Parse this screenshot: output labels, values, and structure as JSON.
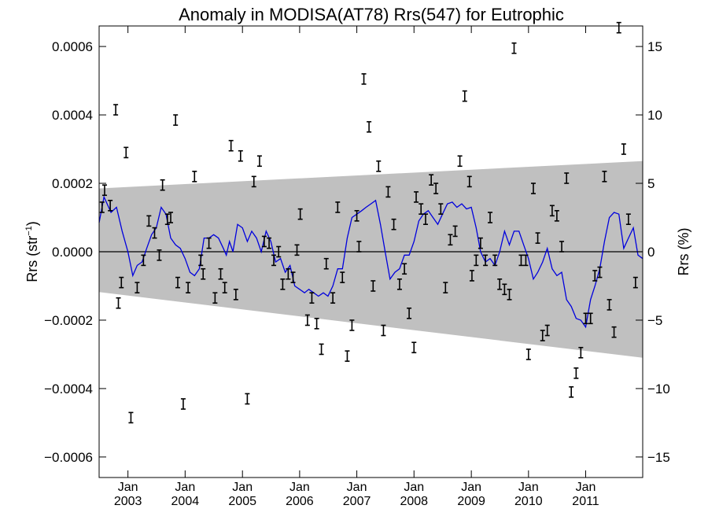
{
  "chart_data": {
    "type": "scatter",
    "title": "Anomaly in MODISA(AT78) Rrs(547) for Eutrophic",
    "ylabel_left_main": "Rrs (str",
    "ylabel_left_sup": "−1",
    "ylabel_left_tail": ")",
    "ylabel_right": "Rrs (%)",
    "x_range": [
      "2002-07-01",
      "2011-12-31"
    ],
    "ylim_left": [
      -0.00066,
      0.00066
    ],
    "ylim_right": [
      -16.5,
      16.5
    ],
    "x_ticks": [
      {
        "date": "2003-01-01",
        "month": "Jan",
        "year": "2003"
      },
      {
        "date": "2004-01-01",
        "month": "Jan",
        "year": "2004"
      },
      {
        "date": "2005-01-01",
        "month": "Jan",
        "year": "2005"
      },
      {
        "date": "2006-01-01",
        "month": "Jan",
        "year": "2006"
      },
      {
        "date": "2007-01-01",
        "month": "Jan",
        "year": "2007"
      },
      {
        "date": "2008-01-01",
        "month": "Jan",
        "year": "2008"
      },
      {
        "date": "2009-01-01",
        "month": "Jan",
        "year": "2009"
      },
      {
        "date": "2010-01-01",
        "month": "Jan",
        "year": "2010"
      },
      {
        "date": "2011-01-01",
        "month": "Jan",
        "year": "2011"
      }
    ],
    "y_ticks_left": [
      {
        "value": 0.0006,
        "label": "0.0006"
      },
      {
        "value": 0.0004,
        "label": "0.0004"
      },
      {
        "value": 0.0002,
        "label": "0.0002"
      },
      {
        "value": 0.0,
        "label": "0.0000"
      },
      {
        "value": -0.0002,
        "label": "−0.0002"
      },
      {
        "value": -0.0004,
        "label": "−0.0004"
      },
      {
        "value": -0.0006,
        "label": "−0.0006"
      }
    ],
    "y_ticks_right": [
      {
        "value": 15,
        "label": "15"
      },
      {
        "value": 10,
        "label": "10"
      },
      {
        "value": 5,
        "label": "5"
      },
      {
        "value": 0,
        "label": "0"
      },
      {
        "value": -5,
        "label": "−5"
      },
      {
        "value": -10,
        "label": "−10"
      },
      {
        "value": -15,
        "label": "−15"
      }
    ],
    "band": {
      "start": {
        "date": "2002-07-01",
        "upper": 0.000185,
        "lower": -0.000118
      },
      "end": {
        "date": "2011-12-31",
        "upper": 0.000265,
        "lower": -0.00031
      },
      "color": "#c0c0c0"
    },
    "zero_line": 0.0,
    "line_color": "#0000dd",
    "errorbar_color": "#000000",
    "errorbar_halfwidth": 1.5e-05,
    "points": [
      {
        "date": "2002-07-20",
        "y": 0.00013
      },
      {
        "date": "2002-08-05",
        "y": 0.00018
      },
      {
        "date": "2002-09-10",
        "y": 0.000135
      },
      {
        "date": "2002-10-15",
        "y": 0.000415
      },
      {
        "date": "2002-11-01",
        "y": -0.00015
      },
      {
        "date": "2002-11-20",
        "y": -9e-05
      },
      {
        "date": "2002-12-20",
        "y": 0.00029
      },
      {
        "date": "2003-01-20",
        "y": -0.000485
      },
      {
        "date": "2003-03-01",
        "y": -0.000105
      },
      {
        "date": "2003-04-10",
        "y": -2.5e-05
      },
      {
        "date": "2003-05-15",
        "y": 9e-05
      },
      {
        "date": "2003-06-20",
        "y": 5.5e-05
      },
      {
        "date": "2003-07-20",
        "y": -1e-05
      },
      {
        "date": "2003-08-10",
        "y": 0.000195
      },
      {
        "date": "2003-09-10",
        "y": 9.5e-05
      },
      {
        "date": "2003-10-01",
        "y": 0.0001
      },
      {
        "date": "2003-11-01",
        "y": 0.000385
      },
      {
        "date": "2003-11-15",
        "y": -9e-05
      },
      {
        "date": "2003-12-20",
        "y": -0.000445
      },
      {
        "date": "2004-01-20",
        "y": -0.000105
      },
      {
        "date": "2004-03-01",
        "y": 0.00022
      },
      {
        "date": "2004-04-10",
        "y": -2.5e-05
      },
      {
        "date": "2004-04-25",
        "y": -6.5e-05
      },
      {
        "date": "2004-06-01",
        "y": 2.5e-05
      },
      {
        "date": "2004-07-10",
        "y": -0.000135
      },
      {
        "date": "2004-08-15",
        "y": -6.5e-05
      },
      {
        "date": "2004-09-10",
        "y": -0.000105
      },
      {
        "date": "2004-10-20",
        "y": 0.00031
      },
      {
        "date": "2004-11-20",
        "y": -0.000125
      },
      {
        "date": "2004-12-20",
        "y": 0.00028
      },
      {
        "date": "2005-02-01",
        "y": -0.00043
      },
      {
        "date": "2005-03-15",
        "y": 0.000205
      },
      {
        "date": "2005-04-20",
        "y": 0.000265
      },
      {
        "date": "2005-05-20",
        "y": 3e-05
      },
      {
        "date": "2005-06-20",
        "y": 2.5e-05
      },
      {
        "date": "2005-07-20",
        "y": -2.5e-05
      },
      {
        "date": "2005-08-20",
        "y": 0.0
      },
      {
        "date": "2005-09-15",
        "y": -9.5e-05
      },
      {
        "date": "2005-10-20",
        "y": -6.5e-05
      },
      {
        "date": "2005-11-20",
        "y": -7.5e-05
      },
      {
        "date": "2005-12-15",
        "y": 5e-06
      },
      {
        "date": "2006-01-05",
        "y": 0.00011
      },
      {
        "date": "2006-02-20",
        "y": -0.0002
      },
      {
        "date": "2006-03-20",
        "y": -0.000135
      },
      {
        "date": "2006-04-20",
        "y": -0.00021
      },
      {
        "date": "2006-05-20",
        "y": -0.000285
      },
      {
        "date": "2006-06-20",
        "y": -3.5e-05
      },
      {
        "date": "2006-08-01",
        "y": -0.000135
      },
      {
        "date": "2006-09-01",
        "y": 0.00013
      },
      {
        "date": "2006-10-01",
        "y": -7.5e-05
      },
      {
        "date": "2006-11-01",
        "y": -0.000305
      },
      {
        "date": "2006-12-01",
        "y": -0.000215
      },
      {
        "date": "2007-01-01",
        "y": 0.000105
      },
      {
        "date": "2007-01-15",
        "y": 1.5e-05
      },
      {
        "date": "2007-02-15",
        "y": 0.000505
      },
      {
        "date": "2007-03-20",
        "y": 0.000365
      },
      {
        "date": "2007-04-15",
        "y": -0.0001
      },
      {
        "date": "2007-05-20",
        "y": 0.00025
      },
      {
        "date": "2007-06-20",
        "y": -0.00023
      },
      {
        "date": "2007-07-20",
        "y": 0.000175
      },
      {
        "date": "2007-08-25",
        "y": 8e-05
      },
      {
        "date": "2007-10-01",
        "y": -9.5e-05
      },
      {
        "date": "2007-11-01",
        "y": -5e-05
      },
      {
        "date": "2007-12-01",
        "y": -0.00018
      },
      {
        "date": "2008-01-01",
        "y": -0.00028
      },
      {
        "date": "2008-01-15",
        "y": 0.00016
      },
      {
        "date": "2008-02-15",
        "y": 0.000125
      },
      {
        "date": "2008-03-15",
        "y": 9.5e-05
      },
      {
        "date": "2008-04-20",
        "y": 0.00021
      },
      {
        "date": "2008-05-20",
        "y": 0.000185
      },
      {
        "date": "2008-06-20",
        "y": 0.000125
      },
      {
        "date": "2008-07-20",
        "y": -0.000105
      },
      {
        "date": "2008-08-20",
        "y": 3.5e-05
      },
      {
        "date": "2008-09-20",
        "y": 6e-05
      },
      {
        "date": "2008-10-20",
        "y": 0.000265
      },
      {
        "date": "2008-11-20",
        "y": 0.000455
      },
      {
        "date": "2008-12-20",
        "y": 0.000205
      },
      {
        "date": "2009-01-05",
        "y": -7e-05
      },
      {
        "date": "2009-02-01",
        "y": -2.5e-05
      },
      {
        "date": "2009-03-01",
        "y": 2.5e-05
      },
      {
        "date": "2009-04-01",
        "y": -2.5e-05
      },
      {
        "date": "2009-05-01",
        "y": 0.0001
      },
      {
        "date": "2009-06-01",
        "y": -2.5e-05
      },
      {
        "date": "2009-07-01",
        "y": -9.5e-05
      },
      {
        "date": "2009-08-01",
        "y": -0.00011
      },
      {
        "date": "2009-09-01",
        "y": -0.000125
      },
      {
        "date": "2009-10-01",
        "y": 0.000595
      },
      {
        "date": "2009-11-15",
        "y": -2.5e-05
      },
      {
        "date": "2009-12-15",
        "y": -2.5e-05
      },
      {
        "date": "2010-01-01",
        "y": -0.0003
      },
      {
        "date": "2010-02-01",
        "y": 0.000185
      },
      {
        "date": "2010-03-01",
        "y": 4e-05
      },
      {
        "date": "2010-04-01",
        "y": -0.000245
      },
      {
        "date": "2010-05-01",
        "y": -0.00023
      },
      {
        "date": "2010-06-01",
        "y": 0.00012
      },
      {
        "date": "2010-07-01",
        "y": 0.000105
      },
      {
        "date": "2010-08-01",
        "y": 1.5e-05
      },
      {
        "date": "2010-09-01",
        "y": 0.000215
      },
      {
        "date": "2010-10-01",
        "y": -0.00041
      },
      {
        "date": "2010-11-01",
        "y": -0.000355
      },
      {
        "date": "2010-12-01",
        "y": -0.000295
      },
      {
        "date": "2011-01-01",
        "y": -0.000195
      },
      {
        "date": "2011-02-01",
        "y": -0.000195
      },
      {
        "date": "2011-03-01",
        "y": -7e-05
      },
      {
        "date": "2011-04-01",
        "y": -6e-05
      },
      {
        "date": "2011-05-01",
        "y": 0.00022
      },
      {
        "date": "2011-06-01",
        "y": -0.000155
      },
      {
        "date": "2011-07-01",
        "y": -0.000235
      },
      {
        "date": "2011-08-01",
        "y": 0.000655
      },
      {
        "date": "2011-09-01",
        "y": 0.0003
      },
      {
        "date": "2011-10-01",
        "y": 9.5e-05
      },
      {
        "date": "2011-11-15",
        "y": -9e-05
      }
    ],
    "line": [
      {
        "date": "2002-07-01",
        "y": 8.5e-05
      },
      {
        "date": "2002-08-01",
        "y": 0.00016
      },
      {
        "date": "2002-09-15",
        "y": 0.000115
      },
      {
        "date": "2002-10-20",
        "y": 0.00013
      },
      {
        "date": "2002-11-25",
        "y": 6e-05
      },
      {
        "date": "2003-01-01",
        "y": 0.0
      },
      {
        "date": "2003-02-01",
        "y": -7e-05
      },
      {
        "date": "2003-03-01",
        "y": -4e-05
      },
      {
        "date": "2003-04-01",
        "y": -3e-05
      },
      {
        "date": "2003-05-01",
        "y": 1e-05
      },
      {
        "date": "2003-06-01",
        "y": 5e-05
      },
      {
        "date": "2003-07-01",
        "y": 7e-05
      },
      {
        "date": "2003-08-01",
        "y": 0.00013
      },
      {
        "date": "2003-09-01",
        "y": 0.00011
      },
      {
        "date": "2003-10-01",
        "y": 4e-05
      },
      {
        "date": "2003-11-01",
        "y": 2e-05
      },
      {
        "date": "2003-12-01",
        "y": 1e-05
      },
      {
        "date": "2004-01-01",
        "y": -2e-05
      },
      {
        "date": "2004-02-01",
        "y": -6e-05
      },
      {
        "date": "2004-03-01",
        "y": -7e-05
      },
      {
        "date": "2004-04-01",
        "y": -5e-05
      },
      {
        "date": "2004-05-01",
        "y": 4e-05
      },
      {
        "date": "2004-06-01",
        "y": 4e-05
      },
      {
        "date": "2004-07-01",
        "y": 5e-05
      },
      {
        "date": "2004-08-01",
        "y": 4e-05
      },
      {
        "date": "2004-09-01",
        "y": 1e-05
      },
      {
        "date": "2004-09-20",
        "y": -1e-05
      },
      {
        "date": "2004-10-10",
        "y": 3e-05
      },
      {
        "date": "2004-11-01",
        "y": 0.0
      },
      {
        "date": "2004-12-01",
        "y": 8e-05
      },
      {
        "date": "2005-01-01",
        "y": 7e-05
      },
      {
        "date": "2005-02-01",
        "y": 3e-05
      },
      {
        "date": "2005-03-01",
        "y": 6e-05
      },
      {
        "date": "2005-04-01",
        "y": 4e-05
      },
      {
        "date": "2005-05-01",
        "y": 0.0
      },
      {
        "date": "2005-06-01",
        "y": 6e-05
      },
      {
        "date": "2005-07-01",
        "y": 3e-05
      },
      {
        "date": "2005-08-01",
        "y": -3e-05
      },
      {
        "date": "2005-09-01",
        "y": -2e-05
      },
      {
        "date": "2005-10-01",
        "y": -6e-05
      },
      {
        "date": "2005-11-01",
        "y": -4e-05
      },
      {
        "date": "2005-12-01",
        "y": -0.0001
      },
      {
        "date": "2006-01-01",
        "y": -0.00011
      },
      {
        "date": "2006-02-01",
        "y": -0.00012
      },
      {
        "date": "2006-03-01",
        "y": -0.00011
      },
      {
        "date": "2006-04-01",
        "y": -0.00012
      },
      {
        "date": "2006-05-01",
        "y": -0.00013
      },
      {
        "date": "2006-06-01",
        "y": -0.00012
      },
      {
        "date": "2006-07-01",
        "y": -0.00013
      },
      {
        "date": "2006-08-01",
        "y": -0.0001
      },
      {
        "date": "2006-09-01",
        "y": -5e-05
      },
      {
        "date": "2006-10-01",
        "y": -5e-05
      },
      {
        "date": "2006-11-01",
        "y": 4e-05
      },
      {
        "date": "2006-12-01",
        "y": 0.0001
      },
      {
        "date": "2007-01-01",
        "y": 0.00011
      },
      {
        "date": "2007-02-01",
        "y": 0.00012
      },
      {
        "date": "2007-03-01",
        "y": 0.00013
      },
      {
        "date": "2007-04-01",
        "y": 0.00014
      },
      {
        "date": "2007-05-01",
        "y": 0.00015
      },
      {
        "date": "2007-06-01",
        "y": 8e-05
      },
      {
        "date": "2007-07-01",
        "y": 0.0
      },
      {
        "date": "2007-08-01",
        "y": -8e-05
      },
      {
        "date": "2007-09-01",
        "y": -6e-05
      },
      {
        "date": "2007-10-01",
        "y": -5e-05
      },
      {
        "date": "2007-11-01",
        "y": -1e-05
      },
      {
        "date": "2007-12-01",
        "y": -1e-05
      },
      {
        "date": "2008-01-01",
        "y": 3e-05
      },
      {
        "date": "2008-02-01",
        "y": 9e-05
      },
      {
        "date": "2008-03-01",
        "y": 0.00011
      },
      {
        "date": "2008-04-01",
        "y": 0.00012
      },
      {
        "date": "2008-05-01",
        "y": 0.0001
      },
      {
        "date": "2008-06-01",
        "y": 8e-05
      },
      {
        "date": "2008-07-01",
        "y": 0.00011
      },
      {
        "date": "2008-08-01",
        "y": 0.00014
      },
      {
        "date": "2008-09-01",
        "y": 0.000145
      },
      {
        "date": "2008-10-01",
        "y": 0.00013
      },
      {
        "date": "2008-11-01",
        "y": 0.00014
      },
      {
        "date": "2008-12-01",
        "y": 0.000125
      },
      {
        "date": "2009-01-01",
        "y": 0.00013
      },
      {
        "date": "2009-02-01",
        "y": 7e-05
      },
      {
        "date": "2009-03-01",
        "y": 0.0
      },
      {
        "date": "2009-04-01",
        "y": -3e-05
      },
      {
        "date": "2009-05-01",
        "y": -2e-05
      },
      {
        "date": "2009-06-01",
        "y": -4e-05
      },
      {
        "date": "2009-07-01",
        "y": 0.0
      },
      {
        "date": "2009-08-01",
        "y": 6e-05
      },
      {
        "date": "2009-09-01",
        "y": 2e-05
      },
      {
        "date": "2009-10-01",
        "y": 6e-05
      },
      {
        "date": "2009-11-01",
        "y": 6e-05
      },
      {
        "date": "2009-12-01",
        "y": 2e-05
      },
      {
        "date": "2010-01-01",
        "y": -2e-05
      },
      {
        "date": "2010-02-01",
        "y": -8e-05
      },
      {
        "date": "2010-03-01",
        "y": -6e-05
      },
      {
        "date": "2010-04-01",
        "y": -3e-05
      },
      {
        "date": "2010-05-01",
        "y": 1e-05
      },
      {
        "date": "2010-06-01",
        "y": -5e-05
      },
      {
        "date": "2010-07-01",
        "y": -7e-05
      },
      {
        "date": "2010-08-01",
        "y": -6e-05
      },
      {
        "date": "2010-09-01",
        "y": -0.00014
      },
      {
        "date": "2010-10-01",
        "y": -0.00016
      },
      {
        "date": "2010-11-01",
        "y": -0.000195
      },
      {
        "date": "2010-12-01",
        "y": -0.0002
      },
      {
        "date": "2011-01-01",
        "y": -0.00022
      },
      {
        "date": "2011-02-01",
        "y": -0.00014
      },
      {
        "date": "2011-03-01",
        "y": -0.0001
      },
      {
        "date": "2011-04-01",
        "y": -5e-05
      },
      {
        "date": "2011-05-01",
        "y": 3e-05
      },
      {
        "date": "2011-06-01",
        "y": 0.0001
      },
      {
        "date": "2011-07-01",
        "y": 0.000115
      },
      {
        "date": "2011-08-01",
        "y": 0.00011
      },
      {
        "date": "2011-09-01",
        "y": 1e-05
      },
      {
        "date": "2011-10-01",
        "y": 4e-05
      },
      {
        "date": "2011-11-01",
        "y": 7e-05
      },
      {
        "date": "2011-12-01",
        "y": -1e-05
      },
      {
        "date": "2011-12-31",
        "y": -2e-05
      }
    ]
  }
}
